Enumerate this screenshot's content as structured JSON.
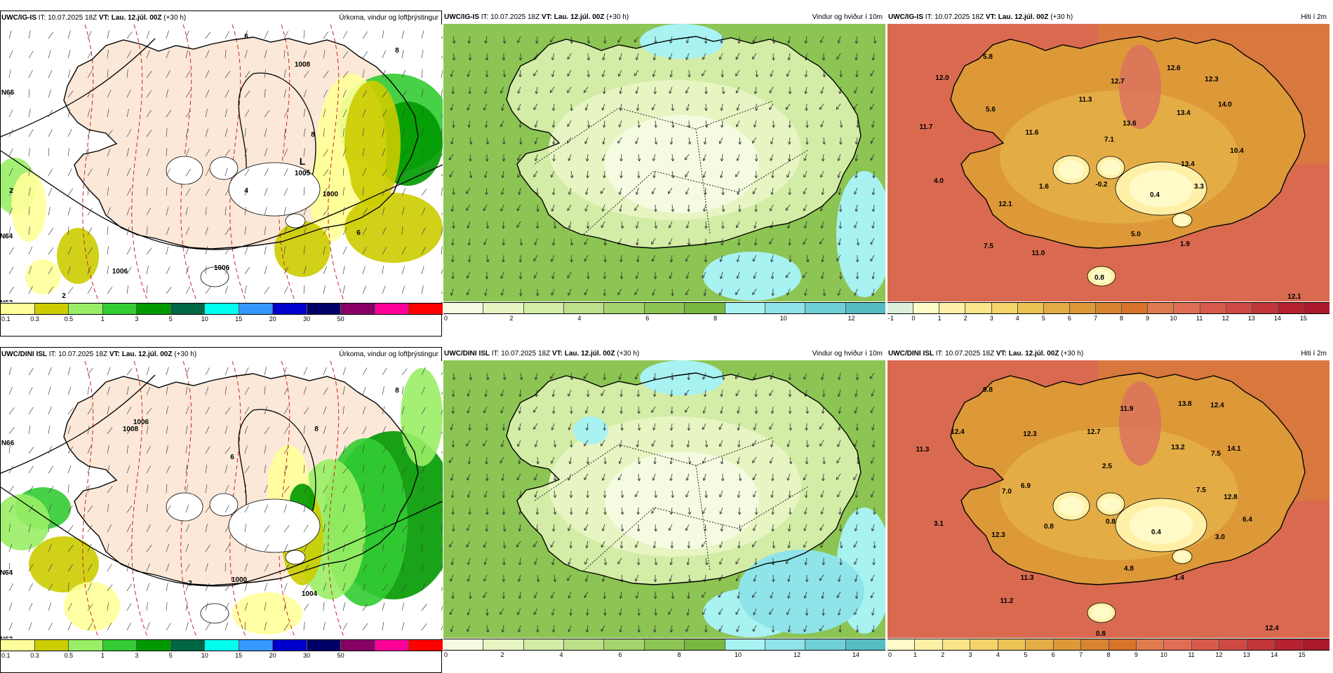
{
  "panels": [
    {
      "id": "igis-precip",
      "model": "UWC/IG-IS",
      "it_label": "IT:",
      "it": "10.07.2025 18Z",
      "vt_label": "VT:",
      "vt": "Lau. 12.júl. 00Z",
      "lead": "(+30 h)",
      "title": "Úrkoma, vindur og loftþrýstingur",
      "kind": "precip",
      "colorbar": {
        "colors": [
          "#ffff99",
          "#cccc00",
          "#99ee66",
          "#33cc33",
          "#009900",
          "#006644",
          "#00ffee",
          "#3399ff",
          "#0000cc",
          "#000066",
          "#880066",
          "#ff0099",
          "#ff0000"
        ],
        "ticks": [
          "0.1",
          "0.3",
          "0.5",
          "1",
          "3",
          "5",
          "10",
          "15",
          "20",
          "30",
          "50"
        ]
      },
      "map_labels": [
        {
          "text": "L",
          "size": "big"
        },
        {
          "text": "1005"
        },
        {
          "text": "1008"
        },
        {
          "text": "1006"
        },
        {
          "text": "1006"
        },
        {
          "text": "1000"
        },
        {
          "text": "6"
        },
        {
          "text": "8"
        },
        {
          "text": "8"
        },
        {
          "text": "4"
        },
        {
          "text": "6"
        },
        {
          "text": "2"
        },
        {
          "text": "2"
        },
        {
          "text": "N66"
        },
        {
          "text": "N64"
        },
        {
          "text": "N63"
        }
      ]
    },
    {
      "id": "igis-wind",
      "model": "UWC/IG-IS",
      "it_label": "IT:",
      "it": "10.07.2025 18Z",
      "vt_label": "VT:",
      "vt": "Lau. 12.júl. 00Z",
      "lead": "(+30 h)",
      "title": "Vindur og hviður í 10m",
      "kind": "wind",
      "colorbar": {
        "colors": [
          "#f5fbe0",
          "#e6f5c2",
          "#d3eca6",
          "#bde08a",
          "#a4d46d",
          "#8cc553",
          "#77b83f",
          "#a8f2f2",
          "#8ee4e8",
          "#6fd0d8",
          "#55bcc4"
        ],
        "ticks": [
          "0",
          "2",
          "4",
          "6",
          "8",
          "10",
          "12"
        ]
      },
      "map_labels": []
    },
    {
      "id": "igis-temp",
      "model": "UWC/IG-IS",
      "it_label": "IT:",
      "it": "10.07.2025 18Z",
      "vt_label": "VT:",
      "vt": "Lau. 12.júl. 00Z",
      "lead": "(+30 h)",
      "title": "Hiti í 2m",
      "kind": "temp",
      "colorbar": {
        "colors": [
          "#ddeedd",
          "#fffbc8",
          "#fff0a8",
          "#fce488",
          "#f5d46a",
          "#ecc254",
          "#e4ac44",
          "#dd9838",
          "#d98430",
          "#d8732a",
          "#e07b50",
          "#e06e55",
          "#d95a4c",
          "#cf4a44",
          "#c2363a",
          "#b5222e",
          "#aa1a2a"
        ],
        "ticks": [
          "-1",
          "0",
          "1",
          "2",
          "3",
          "4",
          "5",
          "6",
          "7",
          "8",
          "9",
          "10",
          "11",
          "12",
          "13",
          "14",
          "15"
        ]
      },
      "map_labels": [
        {
          "text": "5.8"
        },
        {
          "text": "12.0"
        },
        {
          "text": "5.6"
        },
        {
          "text": "11.7"
        },
        {
          "text": "11.6"
        },
        {
          "text": "4.0"
        },
        {
          "text": "12.1"
        },
        {
          "text": "7.5"
        },
        {
          "text": "11.0"
        },
        {
          "text": "1.6"
        },
        {
          "text": "-0.2"
        },
        {
          "text": "0.4"
        },
        {
          "text": "5.0"
        },
        {
          "text": "1.9"
        },
        {
          "text": "0.8"
        },
        {
          "text": "12.6"
        },
        {
          "text": "12.7"
        },
        {
          "text": "11.3"
        },
        {
          "text": "13.6"
        },
        {
          "text": "7.1"
        },
        {
          "text": "12.3"
        },
        {
          "text": "13.4"
        },
        {
          "text": "14.0"
        },
        {
          "text": "10.4"
        },
        {
          "text": "13.4"
        },
        {
          "text": "3.3"
        },
        {
          "text": "12.1"
        }
      ]
    },
    {
      "id": "dini-precip",
      "model": "UWC/DINI ISL",
      "it_label": "IT:",
      "it": "10.07.2025 18Z",
      "vt_label": "VT:",
      "vt": "Lau. 12.júl. 00Z",
      "lead": "(+30 h)",
      "title": "Úrkoma, vindur og loftþrýstingur",
      "kind": "precip",
      "colorbar": {
        "colors": [
          "#ffff99",
          "#cccc00",
          "#99ee66",
          "#33cc33",
          "#009900",
          "#006644",
          "#00ffee",
          "#3399ff",
          "#0000cc",
          "#000066",
          "#880066",
          "#ff0099",
          "#ff0000"
        ],
        "ticks": [
          "0.1",
          "0.3",
          "0.5",
          "1",
          "3",
          "5",
          "10",
          "15",
          "20",
          "30",
          "50"
        ]
      },
      "map_labels": [
        {
          "text": "1008"
        },
        {
          "text": "1006"
        },
        {
          "text": "1000"
        },
        {
          "text": "1004"
        },
        {
          "text": "6"
        },
        {
          "text": "8"
        },
        {
          "text": "8"
        },
        {
          "text": "2"
        },
        {
          "text": "N66"
        },
        {
          "text": "N64"
        },
        {
          "text": "N63"
        }
      ]
    },
    {
      "id": "dini-wind",
      "model": "UWC/DINI ISL",
      "it_label": "IT:",
      "it": "10.07.2025 18Z",
      "vt_label": "VT:",
      "vt": "Lau. 12.júl. 00Z",
      "lead": "(+30 h)",
      "title": "Vindur og hviður í 10m",
      "kind": "wind",
      "colorbar": {
        "colors": [
          "#f5fbe0",
          "#e6f5c2",
          "#d3eca6",
          "#bde08a",
          "#a4d46d",
          "#8cc553",
          "#77b83f",
          "#a8f2f2",
          "#8ee4e8",
          "#6fd0d8",
          "#55bcc4"
        ],
        "ticks": [
          "0",
          "2",
          "4",
          "6",
          "8",
          "10",
          "12",
          "14"
        ]
      },
      "map_labels": []
    },
    {
      "id": "dini-temp",
      "model": "UWC/DINI ISL",
      "it_label": "IT:",
      "it": "10.07.2025 18Z",
      "vt_label": "VT:",
      "vt": "Lau. 12.júl. 00Z",
      "lead": "(+30 h)",
      "title": "Hiti í 2m",
      "kind": "temp",
      "colorbar": {
        "colors": [
          "#fffbc8",
          "#fff0a8",
          "#fce488",
          "#f5d46a",
          "#ecc254",
          "#e4ac44",
          "#dd9838",
          "#d98430",
          "#d8732a",
          "#e07b50",
          "#e06e55",
          "#d95a4c",
          "#cf4a44",
          "#c2363a",
          "#b5222e",
          "#aa1a2a"
        ],
        "ticks": [
          "0",
          "1",
          "2",
          "3",
          "4",
          "5",
          "6",
          "7",
          "8",
          "9",
          "10",
          "11",
          "12",
          "13",
          "14",
          "15"
        ]
      },
      "map_labels": [
        {
          "text": "9.8"
        },
        {
          "text": "12.4"
        },
        {
          "text": "11.3"
        },
        {
          "text": "12.3"
        },
        {
          "text": "7.0"
        },
        {
          "text": "6.9"
        },
        {
          "text": "3.1"
        },
        {
          "text": "12.3"
        },
        {
          "text": "0.8"
        },
        {
          "text": "0.8"
        },
        {
          "text": "0.4"
        },
        {
          "text": "11.3"
        },
        {
          "text": "4.8"
        },
        {
          "text": "1.4"
        },
        {
          "text": "11.2"
        },
        {
          "text": "0.8"
        },
        {
          "text": "12.7"
        },
        {
          "text": "11.9"
        },
        {
          "text": "2.5"
        },
        {
          "text": "13.8"
        },
        {
          "text": "12.4"
        },
        {
          "text": "13.2"
        },
        {
          "text": "7.5"
        },
        {
          "text": "14.1"
        },
        {
          "text": "7.5"
        },
        {
          "text": "12.8"
        },
        {
          "text": "6.4"
        },
        {
          "text": "3.0"
        },
        {
          "text": "12.4"
        }
      ]
    }
  ]
}
